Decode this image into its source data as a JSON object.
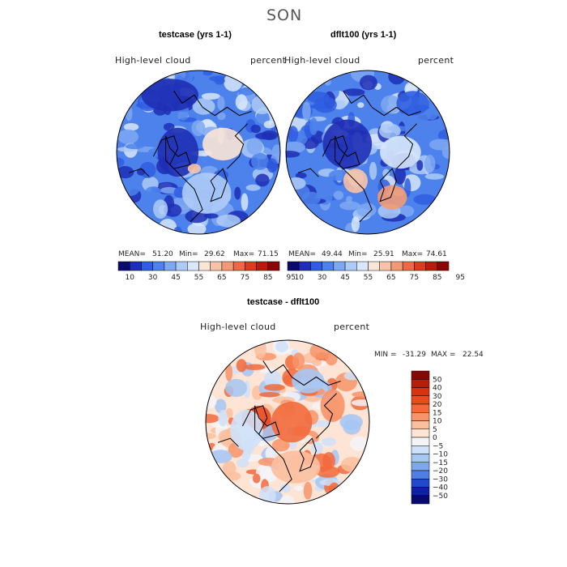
{
  "figure_title": "SON",
  "chart_data": [
    {
      "type": "heatmap",
      "title": "testcase (yrs 1-1)",
      "variable_label": "High-level cloud",
      "units_label": "percent",
      "projection": "north polar stereographic",
      "stats": {
        "mean_label": "MEAN=",
        "mean": "51.20",
        "min_label": "Min=",
        "min": "29.62",
        "max_label": "Max=",
        "max": "71.15"
      },
      "colorbar": {
        "levels": [
          10,
          30,
          45,
          55,
          65,
          75,
          85,
          95
        ],
        "tick_labels": [
          "10",
          "30",
          "45",
          "55",
          "65",
          "75",
          "85",
          "95"
        ],
        "colors": [
          "#0a0a6e",
          "#1f2fb5",
          "#2f5ee0",
          "#4d82ec",
          "#7fa8f2",
          "#aecbf7",
          "#d8e7fb",
          "#fbe5d6",
          "#f7c3a8",
          "#f29a76",
          "#ea6a45",
          "#d93d1e",
          "#b81c0c",
          "#8a0707"
        ]
      }
    },
    {
      "type": "heatmap",
      "title": "dflt100 (yrs 1-1)",
      "variable_label": "High-level cloud",
      "units_label": "percent",
      "projection": "north polar stereographic",
      "stats": {
        "mean_label": "MEAN=",
        "mean": "49.44",
        "min_label": "Min=",
        "min": "25.91",
        "max_label": "Max=",
        "max": "74.61"
      },
      "colorbar": {
        "levels": [
          10,
          30,
          45,
          55,
          65,
          75,
          85,
          95
        ],
        "tick_labels": [
          "10",
          "30",
          "45",
          "55",
          "65",
          "75",
          "85",
          "95"
        ],
        "colors": [
          "#0a0a6e",
          "#1f2fb5",
          "#2f5ee0",
          "#4d82ec",
          "#7fa8f2",
          "#aecbf7",
          "#d8e7fb",
          "#fbe5d6",
          "#f7c3a8",
          "#f29a76",
          "#ea6a45",
          "#d93d1e",
          "#b81c0c",
          "#8a0707"
        ]
      }
    },
    {
      "type": "heatmap",
      "title": "testcase - dflt100",
      "variable_label": "High-level cloud",
      "units_label": "percent",
      "projection": "north polar stereographic",
      "stats": {
        "min_label": "MIN =",
        "min": "-31.29",
        "max_label": "MAX =",
        "max": "22.54"
      },
      "colorbar": {
        "orientation": "vertical",
        "levels": [
          50,
          40,
          30,
          20,
          15,
          10,
          5,
          0,
          -5,
          -10,
          -15,
          -20,
          -30,
          -40,
          -50
        ],
        "tick_labels": [
          "50",
          "40",
          "30",
          "20",
          "15",
          "10",
          "5",
          "0",
          "−5",
          "−10",
          "−15",
          "−20",
          "−30",
          "−40",
          "−50"
        ],
        "colors": [
          "#8a0707",
          "#b81c0c",
          "#d9320f",
          "#eb4a1e",
          "#f26a3c",
          "#f7946a",
          "#fbbf9e",
          "#fde4d4",
          "#f4f4f8",
          "#cfe1f8",
          "#a6c6f3",
          "#7ea7ec",
          "#4f7fe2",
          "#2149cc",
          "#0f1fa6",
          "#070a6e"
        ]
      }
    }
  ]
}
